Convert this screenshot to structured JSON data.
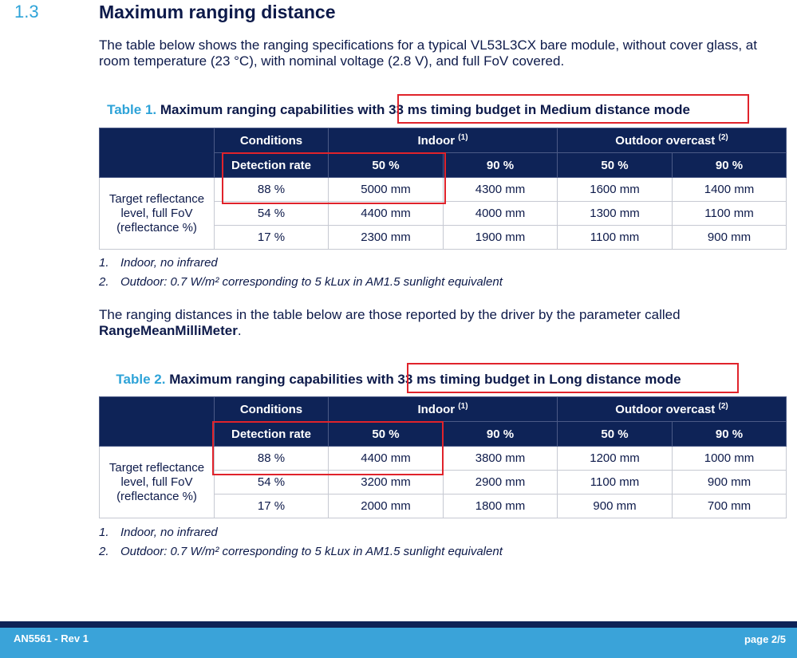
{
  "section": {
    "number": "1.3",
    "title": "Maximum ranging distance"
  },
  "intro": "The table below shows the ranging specifications for a typical VL53L3CX bare module, without cover glass, at room temperature (23 °C), with nominal voltage (2.8 V), and full FoV covered.",
  "table1": {
    "num": "Table 1.",
    "title_pre": "Maximum ranging capabilities ",
    "title_post": "with 33 ms timing budget in Medium distance mode",
    "h_conditions": "Conditions",
    "h_indoor": "Indoor",
    "h_indoor_sup": "(1)",
    "h_outdoor": "Outdoor overcast",
    "h_outdoor_sup": "(2)",
    "h_detection": "Detection rate",
    "h_in50": "50 %",
    "h_in90": "90 %",
    "h_out50": "50 %",
    "h_out90": "90 %",
    "row_label": "Target reflectance level, full FoV (reflectance %)",
    "rows": [
      [
        "88 %",
        "5000 mm",
        "4300 mm",
        "1600 mm",
        "1400 mm"
      ],
      [
        "54 %",
        "4400 mm",
        "4000 mm",
        "1300 mm",
        "1100 mm"
      ],
      [
        "17 %",
        "2300 mm",
        "1900 mm",
        "1100 mm",
        "900 mm"
      ]
    ]
  },
  "notes1": [
    {
      "n": "1.",
      "t": "Indoor, no infrared"
    },
    {
      "n": "2.",
      "t": "Outdoor: 0.7 W/m² corresponding to 5 kLux in AM1.5 sunlight equivalent"
    }
  ],
  "mid_para": {
    "text": "The ranging distances in the table below are those reported by the driver by the parameter called ",
    "param": "RangeMeanMilliMeter",
    "end": "."
  },
  "table2": {
    "num": "Table 2.",
    "title_pre": "Maximum ranging capabilities ",
    "title_post": "with 33 ms timing budget in Long distance mode",
    "h_conditions": "Conditions",
    "h_indoor": "Indoor",
    "h_indoor_sup": "(1)",
    "h_outdoor": "Outdoor overcast",
    "h_outdoor_sup": "(2)",
    "h_detection": "Detection rate",
    "h_in50": "50 %",
    "h_in90": "90 %",
    "h_out50": "50 %",
    "h_out90": "90 %",
    "row_label": "Target reflectance level, full FoV (reflectance %)",
    "rows": [
      [
        "88 %",
        "4400 mm",
        "3800 mm",
        "1200 mm",
        "1000 mm"
      ],
      [
        "54 %",
        "3200 mm",
        "2900 mm",
        "1100 mm",
        "900 mm"
      ],
      [
        "17 %",
        "2000 mm",
        "1800 mm",
        "900 mm",
        "700 mm"
      ]
    ]
  },
  "notes2": [
    {
      "n": "1.",
      "t": "Indoor, no infrared"
    },
    {
      "n": "2.",
      "t": "Outdoor: 0.7 W/m² corresponding to 5 kLux in AM1.5 sunlight equivalent"
    }
  ],
  "footer": {
    "doc": "AN5561 - Rev 1",
    "page": "page 2/5"
  },
  "colors": {
    "accent": "#2ea3d8",
    "header_bg": "#0e2357",
    "highlight": "#e0232b",
    "footer_bg": "#3aa3d9"
  }
}
